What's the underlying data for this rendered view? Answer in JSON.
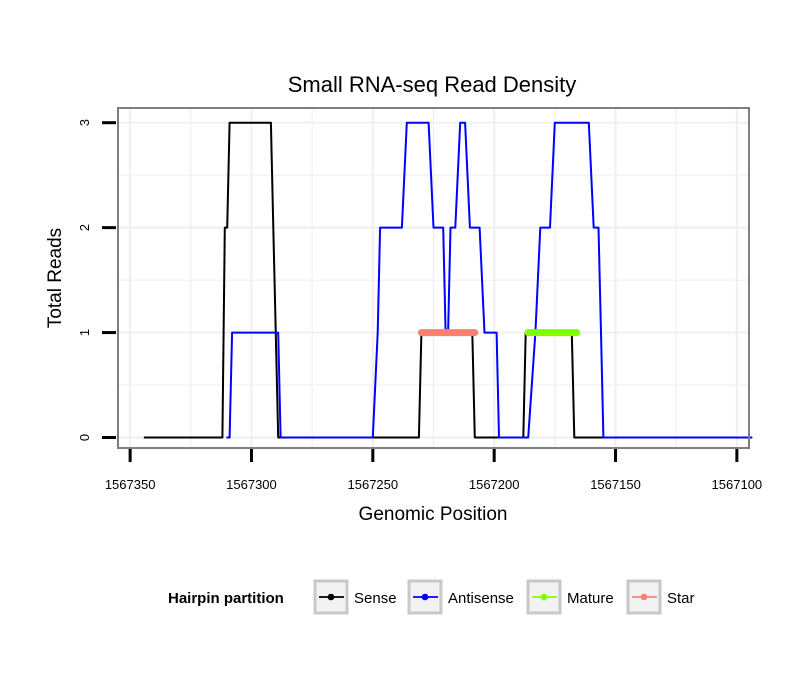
{
  "chart_data": {
    "type": "line",
    "title": "Small RNA-seq Read Density",
    "xlabel": "Genomic Position",
    "ylabel": "Total Reads",
    "xlim": [
      1567355,
      1567095
    ],
    "ylim": [
      -0.1,
      3.14
    ],
    "x_ticks": [
      1567350,
      1567300,
      1567250,
      1567200,
      1567150,
      1567100
    ],
    "x_tick_labels": [
      "1567350",
      "1567300",
      "1567250",
      "1567200",
      "1567150",
      "1567100"
    ],
    "y_ticks": [
      0,
      1,
      2,
      3
    ],
    "y_tick_labels": [
      "0",
      "1",
      "2",
      "3"
    ],
    "grid": true,
    "legend_title": "Hairpin partition",
    "legend_position": "bottom",
    "series": [
      {
        "name": "Sense",
        "color": "#000000",
        "width": 2,
        "points": [
          [
            1567344,
            0
          ],
          [
            1567312,
            0
          ],
          [
            1567311,
            2
          ],
          [
            1567310,
            2
          ],
          [
            1567309,
            3
          ],
          [
            1567292,
            3
          ],
          [
            1567291,
            2
          ],
          [
            1567289,
            0
          ],
          [
            1567231,
            0
          ],
          [
            1567230,
            1
          ],
          [
            1567209,
            1
          ],
          [
            1567208,
            0
          ],
          [
            1567188,
            0
          ],
          [
            1567187,
            1
          ],
          [
            1567168,
            1
          ],
          [
            1567167,
            0
          ],
          [
            1567094,
            0
          ]
        ]
      },
      {
        "name": "Antisense",
        "color": "#0000ff",
        "width": 2,
        "points": [
          [
            1567310,
            0
          ],
          [
            1567309,
            0
          ],
          [
            1567308,
            1
          ],
          [
            1567289,
            1
          ],
          [
            1567288,
            0
          ],
          [
            1567250,
            0
          ],
          [
            1567248,
            1
          ],
          [
            1567247,
            2
          ],
          [
            1567238,
            2
          ],
          [
            1567236,
            3
          ],
          [
            1567227,
            3
          ],
          [
            1567225,
            2
          ],
          [
            1567221,
            2
          ],
          [
            1567220,
            1
          ],
          [
            1567219,
            1
          ],
          [
            1567218,
            2
          ],
          [
            1567216,
            2
          ],
          [
            1567214,
            3
          ],
          [
            1567212,
            3
          ],
          [
            1567210,
            2
          ],
          [
            1567206,
            2
          ],
          [
            1567204,
            1
          ],
          [
            1567199,
            1
          ],
          [
            1567198,
            0
          ],
          [
            1567187,
            0
          ],
          [
            1567186,
            0
          ],
          [
            1567183,
            1
          ],
          [
            1567181,
            2
          ],
          [
            1567177,
            2
          ],
          [
            1567175,
            3
          ],
          [
            1567161,
            3
          ],
          [
            1567159,
            2
          ],
          [
            1567157,
            2
          ],
          [
            1567156,
            1
          ],
          [
            1567155,
            0
          ],
          [
            1567094,
            0
          ]
        ]
      },
      {
        "name": "Mature",
        "color": "#7fff00",
        "width": 7,
        "points": [
          [
            1567186,
            1
          ],
          [
            1567166,
            1
          ]
        ]
      },
      {
        "name": "Star",
        "color": "#fa8072",
        "width": 7,
        "points": [
          [
            1567230,
            1
          ],
          [
            1567208,
            1
          ]
        ]
      }
    ]
  }
}
